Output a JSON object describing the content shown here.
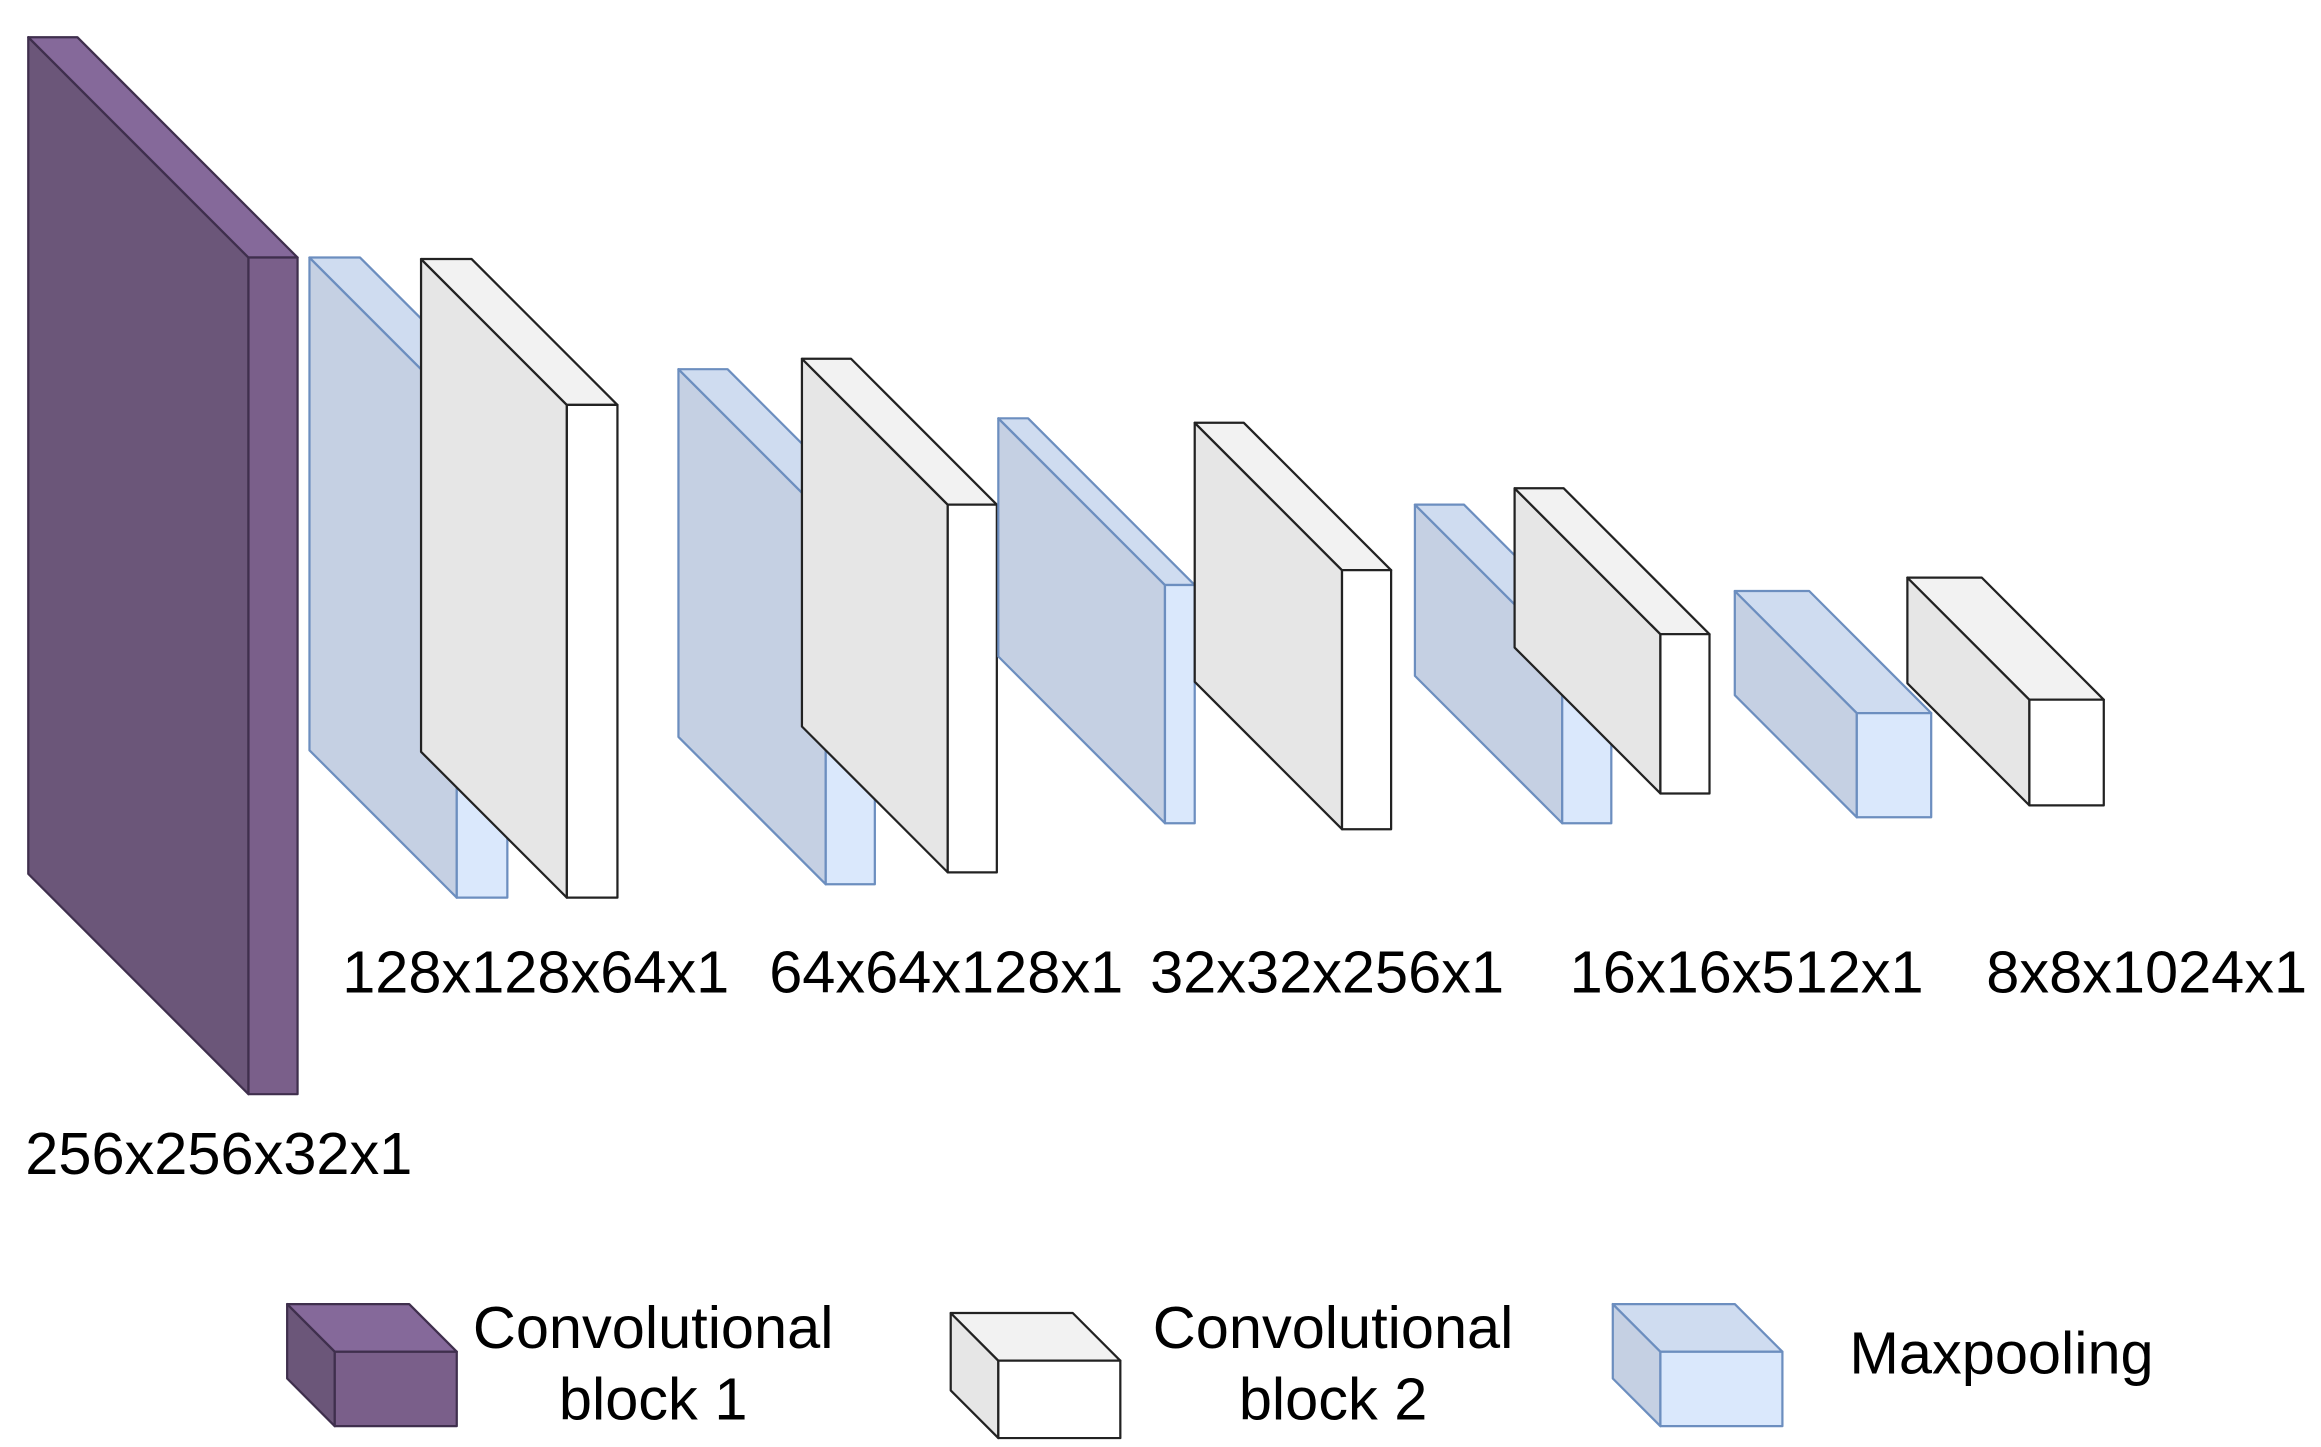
{
  "labels": [
    "256x256x32x1",
    "128x128x64x1",
    "64x64x128x1",
    "32x32x256x1",
    "16x16x512x1",
    "8x8x1024x1"
  ],
  "legend": [
    {
      "lines": [
        "Convolutional",
        "block 1"
      ]
    },
    {
      "lines": [
        "Convolutional",
        "block 2"
      ]
    },
    {
      "lines": [
        "Maxpooling"
      ]
    }
  ]
}
